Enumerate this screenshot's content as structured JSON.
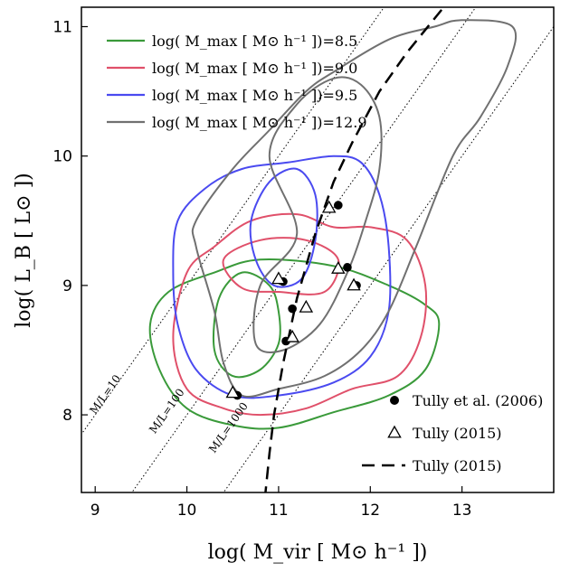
{
  "chart_data": {
    "type": "contour",
    "title": "",
    "xlabel": "log( M_vir [ M⊙ h⁻¹ ])",
    "ylabel": "log( L_B [ L⊙ ])",
    "xlim": [
      8.85,
      14.0
    ],
    "ylim": [
      7.4,
      11.15
    ],
    "xticks": [
      "9",
      "10",
      "11",
      "12",
      "13"
    ],
    "yticks": [
      "8",
      "9",
      "10",
      "11"
    ],
    "xtick_values": [
      9,
      10,
      11,
      12,
      13
    ],
    "ytick_values": [
      8,
      9,
      10,
      11
    ],
    "contour_series": [
      {
        "name": "log( M_max [ M⊙ h⁻¹ ])=8.5",
        "color": "#3a9a3a",
        "contours": [
          [
            [
              9.6,
              8.7
            ],
            [
              9.8,
              8.95
            ],
            [
              10.3,
              9.1
            ],
            [
              10.8,
              9.2
            ],
            [
              11.6,
              9.15
            ],
            [
              12.2,
              9.0
            ],
            [
              12.6,
              8.85
            ],
            [
              12.75,
              8.7
            ],
            [
              12.6,
              8.35
            ],
            [
              12.2,
              8.15
            ],
            [
              11.6,
              8.02
            ],
            [
              11.0,
              7.9
            ],
            [
              10.5,
              7.92
            ],
            [
              10.0,
              8.05
            ],
            [
              9.7,
              8.35
            ],
            [
              9.6,
              8.7
            ]
          ],
          [
            [
              10.35,
              8.9
            ],
            [
              10.6,
              9.1
            ],
            [
              10.9,
              9.0
            ],
            [
              11.0,
              8.8
            ],
            [
              11.0,
              8.55
            ],
            [
              10.8,
              8.35
            ],
            [
              10.5,
              8.3
            ],
            [
              10.3,
              8.5
            ],
            [
              10.35,
              8.9
            ]
          ]
        ]
      },
      {
        "name": "log( M_max [ M⊙ h⁻¹ ])=9.0",
        "color": "#e0506a",
        "contours": [
          [
            [
              9.85,
              8.6
            ],
            [
              10.0,
              9.1
            ],
            [
              10.3,
              9.3
            ],
            [
              10.7,
              9.5
            ],
            [
              11.2,
              9.55
            ],
            [
              11.6,
              9.45
            ],
            [
              12.0,
              9.45
            ],
            [
              12.4,
              9.35
            ],
            [
              12.6,
              9.0
            ],
            [
              12.55,
              8.6
            ],
            [
              12.3,
              8.3
            ],
            [
              11.8,
              8.2
            ],
            [
              11.3,
              8.05
            ],
            [
              10.8,
              8.0
            ],
            [
              10.4,
              8.05
            ],
            [
              10.0,
              8.2
            ],
            [
              9.85,
              8.6
            ]
          ],
          [
            [
              10.4,
              9.2
            ],
            [
              10.8,
              9.35
            ],
            [
              11.3,
              9.35
            ],
            [
              11.65,
              9.2
            ],
            [
              11.5,
              8.95
            ],
            [
              11.0,
              8.95
            ],
            [
              10.6,
              8.98
            ],
            [
              10.4,
              9.2
            ]
          ]
        ]
      },
      {
        "name": "log( M_max [ M⊙ h⁻¹ ])=9.5",
        "color": "#4a4af0",
        "contours": [
          [
            [
              9.85,
              9.1
            ],
            [
              9.9,
              9.5
            ],
            [
              10.2,
              9.75
            ],
            [
              10.6,
              9.9
            ],
            [
              11.1,
              9.95
            ],
            [
              11.6,
              10.0
            ],
            [
              11.9,
              9.95
            ],
            [
              12.1,
              9.7
            ],
            [
              12.2,
              9.3
            ],
            [
              12.2,
              8.8
            ],
            [
              12.0,
              8.45
            ],
            [
              11.6,
              8.25
            ],
            [
              11.0,
              8.15
            ],
            [
              10.5,
              8.15
            ],
            [
              10.1,
              8.35
            ],
            [
              9.9,
              8.7
            ],
            [
              9.85,
              9.1
            ]
          ],
          [
            [
              10.7,
              9.5
            ],
            [
              10.9,
              9.8
            ],
            [
              11.2,
              9.9
            ],
            [
              11.4,
              9.7
            ],
            [
              11.4,
              9.35
            ],
            [
              11.25,
              9.05
            ],
            [
              10.95,
              9.0
            ],
            [
              10.75,
              9.2
            ],
            [
              10.7,
              9.5
            ]
          ]
        ]
      },
      {
        "name": "log( M_max [ M⊙ h⁻¹ ])=12.9",
        "color": "#707070",
        "contours": [
          [
            [
              10.1,
              9.5
            ],
            [
              10.5,
              9.9
            ],
            [
              10.9,
              10.2
            ],
            [
              11.3,
              10.5
            ],
            [
              11.6,
              10.65
            ],
            [
              12.2,
              10.9
            ],
            [
              12.7,
              11.0
            ],
            [
              13.0,
              11.05
            ],
            [
              13.55,
              11.0
            ],
            [
              13.5,
              10.7
            ],
            [
              13.2,
              10.3
            ],
            [
              12.9,
              10.0
            ],
            [
              12.5,
              9.3
            ],
            [
              12.2,
              8.8
            ],
            [
              11.9,
              8.5
            ],
            [
              11.5,
              8.3
            ],
            [
              11.0,
              8.2
            ],
            [
              10.6,
              8.15
            ],
            [
              10.4,
              8.4
            ],
            [
              10.3,
              8.8
            ],
            [
              10.1,
              9.3
            ],
            [
              10.1,
              9.5
            ]
          ],
          [
            [
              10.9,
              10.0
            ],
            [
              11.2,
              10.4
            ],
            [
              11.6,
              10.6
            ],
            [
              11.9,
              10.55
            ],
            [
              12.1,
              10.3
            ],
            [
              12.1,
              9.9
            ],
            [
              11.95,
              9.5
            ],
            [
              11.75,
              9.1
            ],
            [
              11.45,
              8.7
            ],
            [
              11.05,
              8.5
            ],
            [
              10.75,
              8.55
            ],
            [
              10.8,
              9.0
            ],
            [
              11.2,
              9.4
            ],
            [
              10.9,
              10.0
            ]
          ]
        ]
      }
    ],
    "reference_lines": [
      {
        "label": "M/L=10",
        "color": "#000000",
        "style": "dotted",
        "x": [
          8.0,
          13.0
        ],
        "y": [
          7.0,
          12.0
        ]
      },
      {
        "label": "M/L=100",
        "color": "#000000",
        "style": "dotted",
        "x": [
          9.0,
          14.0
        ],
        "y": [
          7.0,
          12.0
        ]
      },
      {
        "label": "M/L=1000",
        "color": "#000000",
        "style": "dotted",
        "x": [
          10.0,
          15.0
        ],
        "y": [
          7.0,
          12.0
        ]
      }
    ],
    "scatter_series": [
      {
        "name": "Tully et al. (2006)",
        "marker": "filled-circle",
        "color": "#000000",
        "x": [
          10.55,
          11.08,
          11.05,
          11.15,
          11.65,
          11.75,
          11.85
        ],
        "y": [
          8.15,
          8.57,
          9.03,
          8.82,
          9.62,
          9.14,
          9.0
        ]
      },
      {
        "name": "Tully (2015)",
        "marker": "open-triangle",
        "color": "#000000",
        "x": [
          10.5,
          11.15,
          11.3,
          11.0,
          11.55,
          11.65,
          11.82
        ],
        "y": [
          8.17,
          8.6,
          8.83,
          9.05,
          9.6,
          9.13,
          9.0
        ]
      }
    ],
    "line_series": [
      {
        "name": "Tully (2015)",
        "style": "dashed",
        "color": "#000000",
        "x": [
          10.85,
          10.9,
          10.95,
          11.05,
          11.2,
          11.4,
          11.6,
          11.8,
          12.1,
          12.4,
          12.8
        ],
        "y": [
          7.35,
          7.7,
          8.0,
          8.4,
          8.9,
          9.4,
          9.8,
          10.1,
          10.5,
          10.8,
          11.15
        ]
      }
    ],
    "legend_top": [
      {
        "text": "log( M_max [ M⊙ h⁻¹ ])=8.5",
        "color": "#3a9a3a"
      },
      {
        "text": "log( M_max [ M⊙ h⁻¹ ])=9.0",
        "color": "#e0506a"
      },
      {
        "text": "log( M_max [ M⊙ h⁻¹ ])=9.5",
        "color": "#4a4af0"
      },
      {
        "text": "log( M_max [ M⊙ h⁻¹ ])=12.9",
        "color": "#707070"
      }
    ],
    "legend_top_placement": "top-left",
    "legend_bottom": [
      {
        "text": "Tully et al. (2006)",
        "marker": "filled-circle"
      },
      {
        "text": "Tully (2015)",
        "marker": "open-triangle"
      },
      {
        "text": "Tully (2015)",
        "marker": "dashed-line"
      }
    ],
    "legend_bottom_placement": "bottom-right",
    "grid": false
  }
}
